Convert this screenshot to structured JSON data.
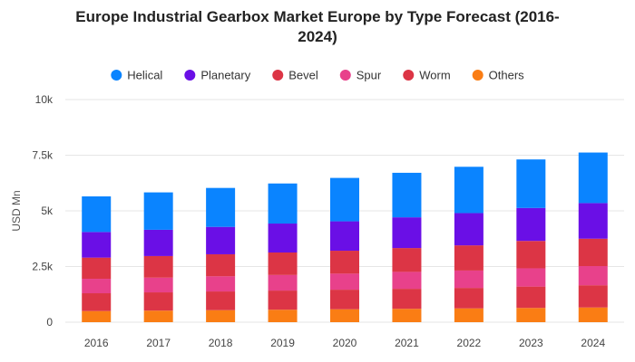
{
  "chart_data": {
    "type": "bar",
    "stacked": true,
    "title_line1": "Europe Industrial Gearbox Market Europe by Type Forecast (2016-",
    "title_line2": "2024)",
    "ylabel": "USD Mn",
    "xlabel": "",
    "ylim": [
      0,
      10000
    ],
    "yticks": [
      0,
      2500,
      5000,
      7500,
      10000
    ],
    "ytick_labels": [
      "0",
      "2.5k",
      "5k",
      "7.5k",
      "10k"
    ],
    "grid": true,
    "legend_position": "top",
    "categories": [
      "2016",
      "2017",
      "2018",
      "2019",
      "2020",
      "2021",
      "2022",
      "2023",
      "2024"
    ],
    "series": [
      {
        "name": "Others",
        "color": "#fa7d14",
        "values": [
          500,
          520,
          540,
          560,
          580,
          600,
          620,
          640,
          660
        ]
      },
      {
        "name": "Worm",
        "color": "#dc3545",
        "values": [
          800,
          820,
          840,
          860,
          880,
          900,
          920,
          960,
          1000
        ]
      },
      {
        "name": "Spur",
        "color": "#e8418b",
        "values": [
          650,
          660,
          680,
          700,
          720,
          760,
          780,
          820,
          860
        ]
      },
      {
        "name": "Bevel",
        "color": "#dc3545",
        "values": [
          950,
          970,
          990,
          1010,
          1030,
          1070,
          1130,
          1230,
          1230
        ]
      },
      {
        "name": "Planetary",
        "color": "#6a0fe6",
        "values": [
          1150,
          1180,
          1230,
          1300,
          1320,
          1380,
          1450,
          1480,
          1600
        ]
      },
      {
        "name": "Helical",
        "color": "#0a84ff",
        "values": [
          1600,
          1680,
          1750,
          1800,
          1950,
          2000,
          2080,
          2180,
          2270
        ]
      }
    ],
    "legend_order": [
      "Helical",
      "Planetary",
      "Bevel",
      "Spur",
      "Worm",
      "Others"
    ],
    "legend_colors": {
      "Helical": "#0a84ff",
      "Planetary": "#6a0fe6",
      "Bevel": "#dc3545",
      "Spur": "#e8418b",
      "Worm": "#dc3545",
      "Others": "#fa7d14"
    }
  }
}
